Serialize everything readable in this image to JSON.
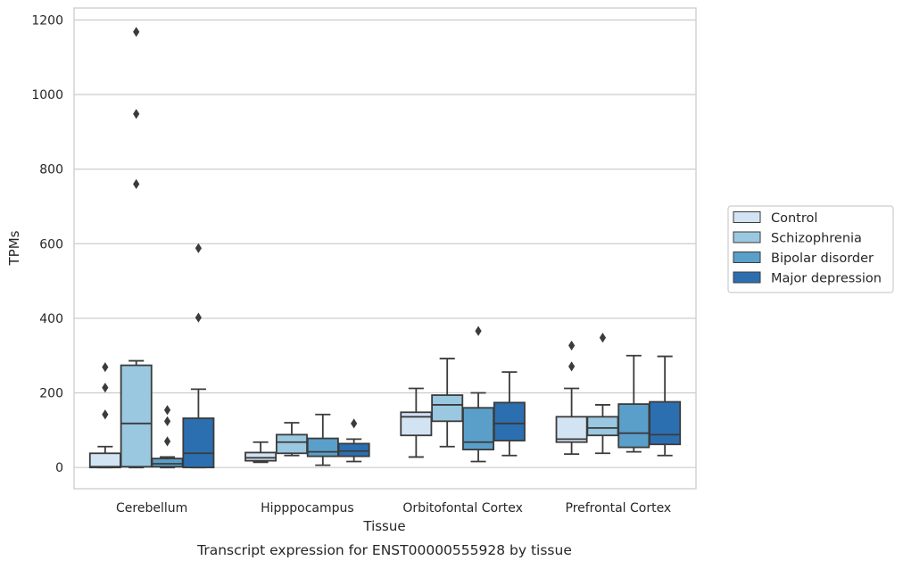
{
  "chart_data": {
    "type": "box",
    "title": "",
    "caption": "Transcript expression for ENST00000555928 by tissue",
    "xlabel": "Tissue",
    "ylabel": "TPMs",
    "ylim": [
      -57,
      1232
    ],
    "yticks": [
      0,
      200,
      400,
      600,
      800,
      1000,
      1200
    ],
    "grid": "horizontal",
    "legend_position": "right",
    "categories": [
      "Cerebellum",
      "Hipppocampus",
      "Orbitofontal Cortex",
      "Prefrontal Cortex"
    ],
    "series": [
      {
        "name": "Control",
        "color": "#d2e3f3",
        "boxes": [
          {
            "whisker_low": 0,
            "q1": 0,
            "median": 2,
            "q3": 38,
            "whisker_high": 56,
            "outliers": [
              142,
              214,
              269
            ]
          },
          {
            "whisker_low": 14,
            "q1": 18,
            "median": 26,
            "q3": 40,
            "whisker_high": 68,
            "outliers": []
          },
          {
            "whisker_low": 28,
            "q1": 86,
            "median": 136,
            "q3": 148,
            "whisker_high": 212,
            "outliers": []
          },
          {
            "whisker_low": 36,
            "q1": 68,
            "median": 76,
            "q3": 136,
            "whisker_high": 212,
            "outliers": [
              271,
              327
            ]
          }
        ]
      },
      {
        "name": "Schizophrenia",
        "color": "#9ac8e0",
        "boxes": [
          {
            "whisker_low": 0,
            "q1": 2,
            "median": 118,
            "q3": 274,
            "whisker_high": 286,
            "outliers": [
              760,
              948,
              1168
            ]
          },
          {
            "whisker_low": 32,
            "q1": 38,
            "median": 68,
            "q3": 88,
            "whisker_high": 120,
            "outliers": []
          },
          {
            "whisker_low": 56,
            "q1": 124,
            "median": 168,
            "q3": 194,
            "whisker_high": 292,
            "outliers": []
          },
          {
            "whisker_low": 38,
            "q1": 86,
            "median": 106,
            "q3": 136,
            "whisker_high": 168,
            "outliers": [
              348
            ]
          }
        ]
      },
      {
        "name": "Bipolar disorder",
        "color": "#5a9fc9",
        "boxes": [
          {
            "whisker_low": 0,
            "q1": 2,
            "median": 10,
            "q3": 24,
            "whisker_high": 28,
            "outliers": [
              70,
              124,
              154
            ]
          },
          {
            "whisker_low": 6,
            "q1": 30,
            "median": 42,
            "q3": 78,
            "whisker_high": 142,
            "outliers": []
          },
          {
            "whisker_low": 16,
            "q1": 48,
            "median": 68,
            "q3": 160,
            "whisker_high": 200,
            "outliers": [
              366
            ]
          },
          {
            "whisker_low": 42,
            "q1": 54,
            "median": 92,
            "q3": 170,
            "whisker_high": 300,
            "outliers": []
          }
        ]
      },
      {
        "name": "Major depression",
        "color": "#2c6fb0",
        "boxes": [
          {
            "whisker_low": 0,
            "q1": 0,
            "median": 38,
            "q3": 132,
            "whisker_high": 210,
            "outliers": [
              402,
              588
            ]
          },
          {
            "whisker_low": 16,
            "q1": 30,
            "median": 44,
            "q3": 64,
            "whisker_high": 76,
            "outliers": [
              118
            ]
          },
          {
            "whisker_low": 32,
            "q1": 72,
            "median": 118,
            "q3": 174,
            "whisker_high": 256,
            "outliers": []
          },
          {
            "whisker_low": 32,
            "q1": 62,
            "median": 88,
            "q3": 176,
            "whisker_high": 298,
            "outliers": []
          }
        ]
      }
    ]
  }
}
